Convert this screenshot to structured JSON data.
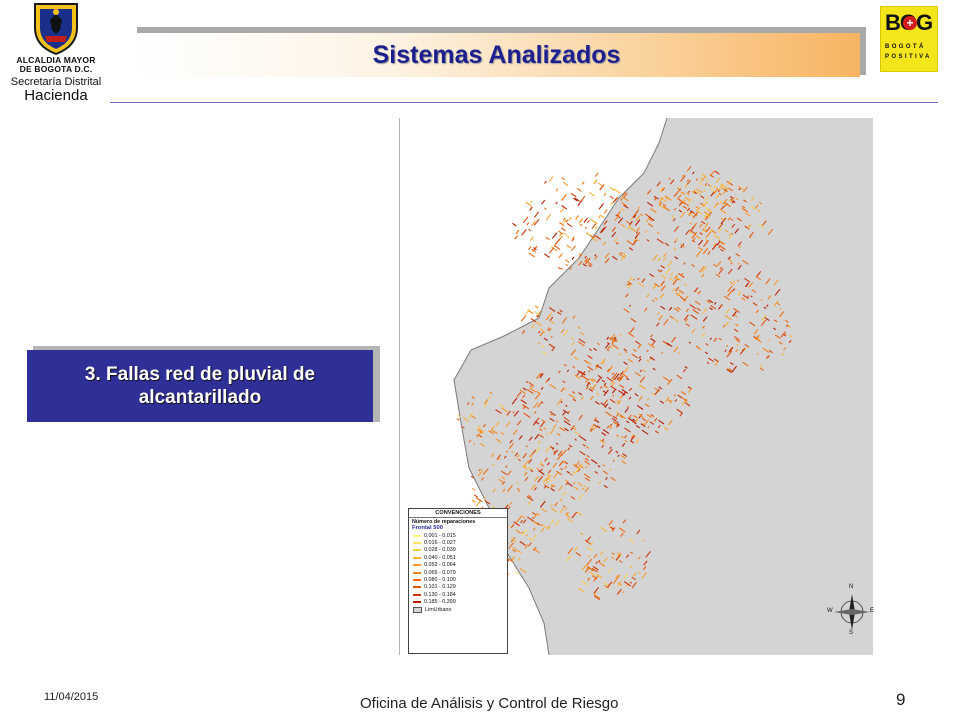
{
  "header": {
    "title": "Sistemas Analizados",
    "left_logo": {
      "line1": "ALCALDIA MAYOR",
      "line2": "DE BOGOTA D.C.",
      "line3": "Secretaría Distrital",
      "line4": "Hacienda"
    },
    "right_logo": {
      "text": "BOG",
      "mark": "+",
      "line1": "BOGOTÁ",
      "line2": "POSITIVA",
      "color": "#f4e61a"
    }
  },
  "label_box": {
    "line1": "3. Fallas red de pluvial de",
    "line2": "alcantarillado"
  },
  "map": {
    "legend": {
      "title": "CONVENCIONES",
      "subtitle": "Número de reparaciones",
      "field": "Frontal 500",
      "items": [
        {
          "label": "0.001 - 0.015",
          "color": "#fff37a"
        },
        {
          "label": "0.016 - 0.027",
          "color": "#fde066"
        },
        {
          "label": "0.028 - 0.039",
          "color": "#fbcb4f"
        },
        {
          "label": "0.040 - 0.051",
          "color": "#f9b53c"
        },
        {
          "label": "0.052 - 0.064",
          "color": "#f79d2c"
        },
        {
          "label": "0.065 - 0.079",
          "color": "#f3851f"
        },
        {
          "label": "0.080 - 0.100",
          "color": "#ec6c14"
        },
        {
          "label": "0.101 - 0.129",
          "color": "#e0520e"
        },
        {
          "label": "0.130 - 0.184",
          "color": "#cf3609"
        },
        {
          "label": "0.185 - 0.399",
          "color": "#b81e05"
        }
      ],
      "urban_label": "LimUrbano"
    },
    "north_arrow": {
      "n": "N",
      "s": "S",
      "e": "E",
      "w": "W"
    },
    "colors": {
      "urban": "#d4d4d4",
      "border": "#6a6a6a"
    }
  },
  "footer": {
    "date": "11/04/2015",
    "office": "Oficina  de Análisis y Control de Riesgo",
    "page": "9"
  }
}
